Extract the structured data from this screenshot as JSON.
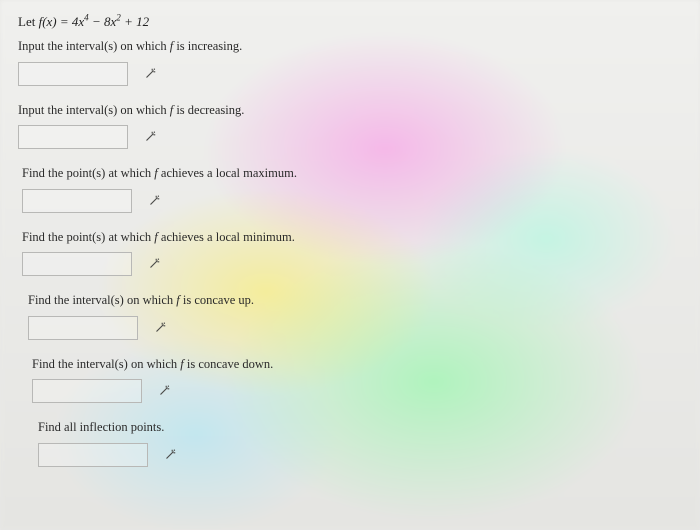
{
  "stem_prefix": "Let ",
  "stem_math_html": "f(x) = 4x<sup>4</sup> − 8x<sup>2</sup> + 12",
  "questions": [
    {
      "prompt": "Input the interval(s) on which <em>f</em> is increasing."
    },
    {
      "prompt": "Input the interval(s) on which <em>f</em> is decreasing."
    },
    {
      "prompt": "Find the point(s) at which <em>f</em> achieves a local maximum."
    },
    {
      "prompt": "Find the point(s) at which <em>f</em> achieves a local minimum."
    },
    {
      "prompt": "Find the interval(s) on which <em>f</em> is concave up."
    },
    {
      "prompt": "Find the interval(s) on which <em>f</em> is concave down."
    },
    {
      "prompt": "Find all inflection points."
    }
  ],
  "icon_title": "Equation editor",
  "colors": {
    "text": "#333333",
    "input_border": "#b8b8b6",
    "background": "#e8e8e6"
  }
}
